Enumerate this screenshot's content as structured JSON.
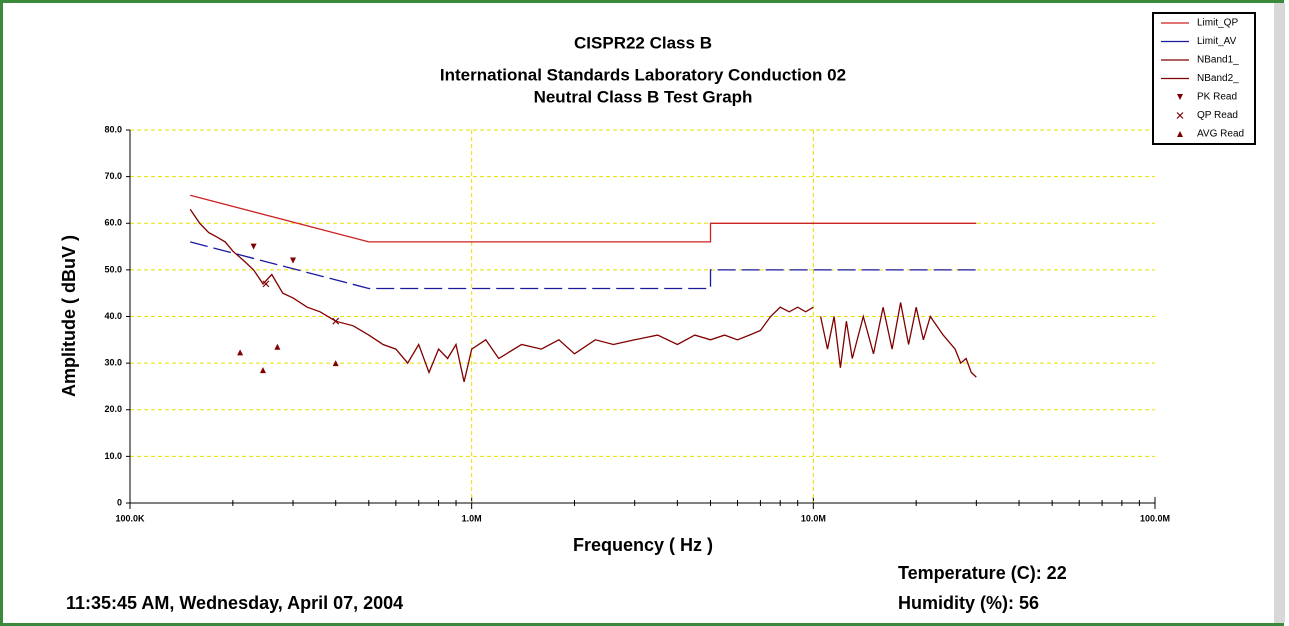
{
  "chart_data": {
    "type": "line",
    "title": "CISPR22 Class B",
    "subtitles": [
      "International Standards Laboratory Conduction 02",
      "Neutral Class B Test Graph"
    ],
    "x_label": "Frequency ( Hz )",
    "y_label": "Amplitude ( dBuV )",
    "xscale": "log",
    "grid": true,
    "legend": "top-right",
    "xlim": [
      100000,
      100000000
    ],
    "xticks": [
      {
        "value": 100000,
        "label": "100.0K"
      },
      {
        "value": 1000000,
        "label": "1.0M"
      },
      {
        "value": 10000000,
        "label": "10.0M"
      },
      {
        "value": 100000000,
        "label": "100.0M"
      }
    ],
    "ylim": [
      0,
      80
    ],
    "yticks": [
      0,
      {
        "value": 10,
        "label": "10.0"
      },
      {
        "value": 20,
        "label": "20.0"
      },
      {
        "value": 30,
        "label": "30.0"
      },
      {
        "value": 40,
        "label": "40.0"
      },
      {
        "value": 50,
        "label": "50.0"
      },
      {
        "value": 60,
        "label": "60.0"
      },
      {
        "value": 70,
        "label": "70.0"
      },
      {
        "value": 80,
        "label": "80.0"
      }
    ],
    "series": [
      {
        "name": "Limit_QP",
        "color": "#cc2222",
        "style": "solid",
        "x": [
          150000,
          500000,
          5000000,
          5000000,
          30000000
        ],
        "values": [
          66,
          56,
          56,
          60,
          60
        ]
      },
      {
        "name": "Limit_AV",
        "color": "#1a1aa0",
        "style": "dashed",
        "x": [
          150000,
          500000,
          5000000,
          5000000,
          30000000
        ],
        "values": [
          56,
          46,
          46,
          50,
          50
        ]
      },
      {
        "name": "NBand1_",
        "color": "#800000",
        "style": "solid",
        "x": [
          150000,
          160000,
          170000,
          180000,
          190000,
          200000,
          215000,
          230000,
          245000,
          260000,
          280000,
          300000,
          330000,
          360000,
          400000,
          450000,
          500000,
          550000,
          600000,
          650000,
          700000,
          750000,
          800000,
          850000,
          900000,
          950000,
          1000000,
          1100000,
          1200000,
          1400000,
          1600000,
          1800000,
          2000000,
          2300000,
          2600000,
          3000000,
          3500000,
          4000000,
          4500000,
          5000000,
          5500000,
          6000000,
          6500000,
          7000000,
          7500000,
          8000000,
          8500000,
          9000000,
          9500000,
          10000000
        ],
        "values": [
          63,
          60,
          58,
          57,
          56,
          54,
          52,
          50,
          47,
          49,
          45,
          44,
          42,
          41,
          39,
          38,
          36,
          34,
          33,
          30,
          34,
          28,
          33,
          31,
          34,
          26,
          33,
          35,
          31,
          34,
          33,
          35,
          32,
          35,
          34,
          35,
          36,
          34,
          36,
          35,
          36,
          35,
          36,
          37,
          40,
          42,
          41,
          42,
          41,
          42
        ]
      },
      {
        "name": "NBand2_",
        "color": "#800000",
        "style": "solid",
        "x": [
          10500000,
          11000000,
          11500000,
          12000000,
          12500000,
          13000000,
          14000000,
          15000000,
          16000000,
          17000000,
          18000000,
          19000000,
          20000000,
          21000000,
          22000000,
          24000000,
          26000000,
          27000000,
          28000000,
          29000000,
          30000000
        ],
        "values": [
          40,
          33,
          40,
          29,
          39,
          31,
          40,
          32,
          42,
          33,
          43,
          34,
          42,
          35,
          40,
          36,
          33,
          30,
          31,
          28,
          27
        ]
      },
      {
        "name": "PK Read",
        "color": "#800000",
        "marker": "down-triangle",
        "x": [
          230000,
          300000
        ],
        "values": [
          55,
          52
        ]
      },
      {
        "name": "QP Read",
        "color": "#800000",
        "marker": "x",
        "x": [
          250000,
          400000
        ],
        "values": [
          47,
          39
        ]
      },
      {
        "name": "AVG Read",
        "color": "#800000",
        "marker": "triangle",
        "x": [
          210000,
          245000,
          270000,
          400000
        ],
        "values": [
          32.3,
          28.5,
          33.5,
          30
        ]
      }
    ]
  },
  "footer": {
    "timestamp": "11:35:45 AM, Wednesday, April 07, 2004",
    "temperature": "Temperature (C): 22",
    "humidity": "Humidity (%): 56"
  }
}
